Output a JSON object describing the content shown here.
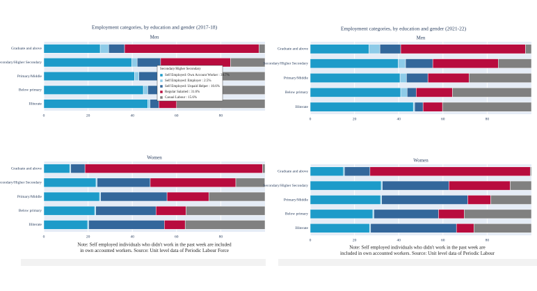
{
  "chart_data": [
    {
      "type": "bar",
      "orientation": "horizontal",
      "stacked": true,
      "title": "Employment categories, by education and gender (2017-18)",
      "subtitle": "Men",
      "categories": [
        "Graduate and above",
        "Secondary/Higher Secondary",
        "Primary/Middle",
        "Below primary",
        "Illiterate"
      ],
      "series": [
        {
          "name": "Self Employed: Own Account Worker",
          "color": "#1d9bc9",
          "values": [
            25.5,
            39.7,
            41,
            45,
            47
          ]
        },
        {
          "name": "Self Employed: Employer",
          "color": "#8ecbe8",
          "values": [
            3.8,
            2.5,
            2,
            2,
            1
          ]
        },
        {
          "name": "Self Employed: Unpaid Helper",
          "color": "#33679b",
          "values": [
            7.2,
            10.6,
            12,
            12,
            4
          ]
        },
        {
          "name": "Regular Salaried",
          "color": "#b80c3e",
          "values": [
            60.8,
            31.6,
            20,
            15,
            8
          ]
        },
        {
          "name": "Casual Labour",
          "color": "#808080",
          "values": [
            2.7,
            15.6,
            25,
            26,
            40
          ]
        }
      ],
      "xlim": [
        0,
        100
      ],
      "xticks": [
        0,
        20,
        40,
        60,
        80
      ],
      "grid": true,
      "tooltip": {
        "title": "Secondary/Higher Secondary",
        "lines": [
          "Self Employed: Own Account Worker : 39.7%",
          "Self Employed: Employer : 2.5%",
          "Self Employed: Unpaid Helper : 10.6%",
          "Regular Salaried : 31.6%",
          "Casual Labour : 15.6%"
        ]
      }
    },
    {
      "type": "bar",
      "orientation": "horizontal",
      "stacked": true,
      "subtitle": "Women",
      "categories": [
        "Graduate and above",
        "Secondary/Higher Secondary",
        "Primary/Middle",
        "Below primary",
        "Illiterate"
      ],
      "series": [
        {
          "name": "Self Employed: Own Account Worker",
          "color": "#1d9bc9",
          "values": [
            11.7,
            23.6,
            25.2,
            23,
            19.8
          ]
        },
        {
          "name": "Self Employed: Employer",
          "color": "#8ecbe8",
          "values": [
            0.5,
            0.5,
            0.5,
            0.5,
            0.5
          ]
        },
        {
          "name": "Self Employed: Unpaid Helper",
          "color": "#33679b",
          "values": [
            6.4,
            24,
            30,
            27.2,
            34.2
          ]
        },
        {
          "name": "Regular Salaried",
          "color": "#b80c3e",
          "values": [
            80.3,
            38.7,
            18.9,
            13.6,
            9.4
          ]
        },
        {
          "name": "Casual Labour",
          "color": "#808080",
          "values": [
            1.1,
            13.1,
            25.4,
            35.7,
            36.1
          ]
        }
      ],
      "xlim": [
        0,
        100
      ],
      "xticks": [
        0,
        20,
        40,
        60,
        80
      ],
      "grid": true,
      "note": [
        "Note: Self employed individuals who didn't work in the past week are included",
        "in own accounted workers. Source: Unit level data of Periodic Labour Force"
      ]
    },
    {
      "type": "bar",
      "orientation": "horizontal",
      "stacked": true,
      "title": "Employment categories, by education and gender (2021-22)",
      "subtitle": "Men",
      "categories": [
        "Graduate and above",
        "Secondary/Higher Secondary",
        "Primary/Middle",
        "Below primary",
        "Illiterate"
      ],
      "series": [
        {
          "name": "Self Employed: Own Account Worker",
          "color": "#1d9bc9",
          "values": [
            26.5,
            39.7,
            40.6,
            40.9,
            46.6
          ]
        },
        {
          "name": "Self Employed: Employer",
          "color": "#8ecbe8",
          "values": [
            5,
            3.4,
            2.9,
            2.9,
            0.6
          ]
        },
        {
          "name": "Self Employed: Unpaid Helper",
          "color": "#33679b",
          "values": [
            9.4,
            12.3,
            9.7,
            4.1,
            3.8
          ]
        },
        {
          "name": "Regular Salaried",
          "color": "#b80c3e",
          "values": [
            56.4,
            29.6,
            18.6,
            16.4,
            8.8
          ]
        },
        {
          "name": "Casual Labour",
          "color": "#808080",
          "values": [
            2.7,
            15,
            28.2,
            35.7,
            40.2
          ]
        }
      ],
      "xlim": [
        0,
        100
      ],
      "xticks": [
        0,
        20,
        40,
        60,
        80
      ],
      "grid": true
    },
    {
      "type": "bar",
      "orientation": "horizontal",
      "stacked": true,
      "subtitle": "Women",
      "categories": [
        "Graduate and above",
        "Secondary/Higher Secondary",
        "Primary/Middle",
        "Below primary",
        "Illiterate"
      ],
      "series": [
        {
          "name": "Self Employed: Own Account Worker",
          "color": "#1d9bc9",
          "values": [
            15,
            32.1,
            31.8,
            28.3,
            26.8
          ]
        },
        {
          "name": "Self Employed: Employer",
          "color": "#8ecbe8",
          "values": [
            0.5,
            0.5,
            0.5,
            0.5,
            0.5
          ]
        },
        {
          "name": "Self Employed: Unpaid Helper",
          "color": "#33679b",
          "values": [
            11.5,
            30.1,
            38.9,
            29.2,
            38.8
          ]
        },
        {
          "name": "Regular Salaried",
          "color": "#b80c3e",
          "values": [
            72.5,
            27.7,
            10.4,
            11.6,
            7.9
          ]
        },
        {
          "name": "Casual Labour",
          "color": "#808080",
          "values": [
            0.5,
            9.6,
            18.4,
            30.4,
            26
          ]
        }
      ],
      "xlim": [
        0,
        100
      ],
      "xticks": [
        0,
        20,
        40,
        60,
        80
      ],
      "grid": true,
      "note": [
        "Note: Self employed individuals who didn't work in the past week are",
        "included in own accounted workers. Source: Unit level data of Periodic Labour"
      ]
    }
  ]
}
